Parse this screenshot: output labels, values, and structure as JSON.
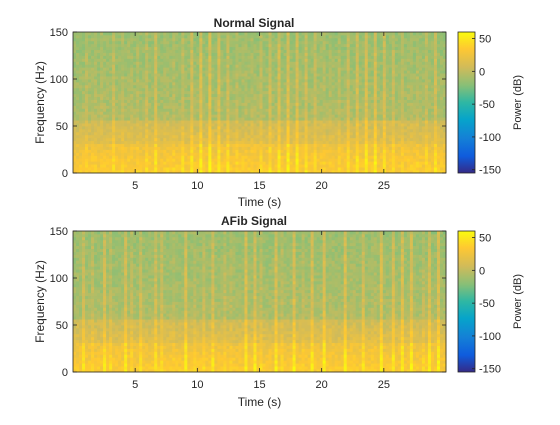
{
  "chart_data": [
    {
      "type": "heatmap",
      "title": "Normal Signal",
      "xlabel": "Time (s)",
      "ylabel": "Frequency (Hz)",
      "xlim": [
        0,
        30
      ],
      "ylim": [
        0,
        150
      ],
      "xticks": [
        5,
        10,
        15,
        20,
        25
      ],
      "yticks": [
        0,
        50,
        100,
        150
      ],
      "colorbar": {
        "label": "Power (dB)",
        "range": [
          -155,
          60
        ],
        "ticks": [
          50,
          0,
          -50,
          -100,
          -150
        ]
      },
      "beat_times_s": [
        1.0,
        1.7,
        2.4,
        3.2,
        3.9,
        4.6,
        5.3,
        6.0,
        6.7,
        7.5,
        8.2,
        8.9,
        9.6,
        10.3,
        11.0,
        11.7,
        12.4,
        13.1,
        13.8,
        14.5,
        15.2,
        15.9,
        16.6,
        17.3,
        18.0,
        18.7,
        19.4,
        20.1,
        20.8,
        21.5,
        22.2,
        22.9,
        23.6,
        24.3,
        25.0,
        25.7,
        26.4,
        27.1,
        27.8,
        28.5,
        29.2
      ],
      "power_profile_db": {
        "low_freq_band_hz": [
          0,
          30
        ],
        "low_freq_power": 35,
        "mid_freq_power": 5,
        "high_freq_power": -15
      }
    },
    {
      "type": "heatmap",
      "title": "AFib Signal",
      "xlabel": "Time (s)",
      "ylabel": "Frequency (Hz)",
      "xlim": [
        0,
        30
      ],
      "ylim": [
        0,
        150
      ],
      "xticks": [
        5,
        10,
        15,
        20,
        25
      ],
      "yticks": [
        0,
        50,
        100,
        150
      ],
      "colorbar": {
        "label": "Power (dB)",
        "range": [
          -155,
          60
        ],
        "ticks": [
          50,
          0,
          -50,
          -100,
          -150
        ]
      },
      "beat_times_s": [
        0.9,
        1.5,
        2.5,
        3.1,
        4.2,
        4.8,
        5.5,
        6.6,
        7.2,
        8.0,
        9.1,
        9.7,
        10.6,
        11.3,
        12.3,
        12.8,
        13.9,
        14.6,
        15.2,
        16.3,
        16.9,
        17.8,
        18.6,
        19.2,
        20.2,
        20.8,
        21.9,
        22.5,
        23.3,
        24.2,
        24.8,
        25.8,
        26.5,
        27.2,
        28.1,
        28.7,
        29.4
      ],
      "power_profile_db": {
        "low_freq_band_hz": [
          0,
          30
        ],
        "low_freq_power": 35,
        "mid_freq_power": 5,
        "high_freq_power": -15
      }
    }
  ]
}
